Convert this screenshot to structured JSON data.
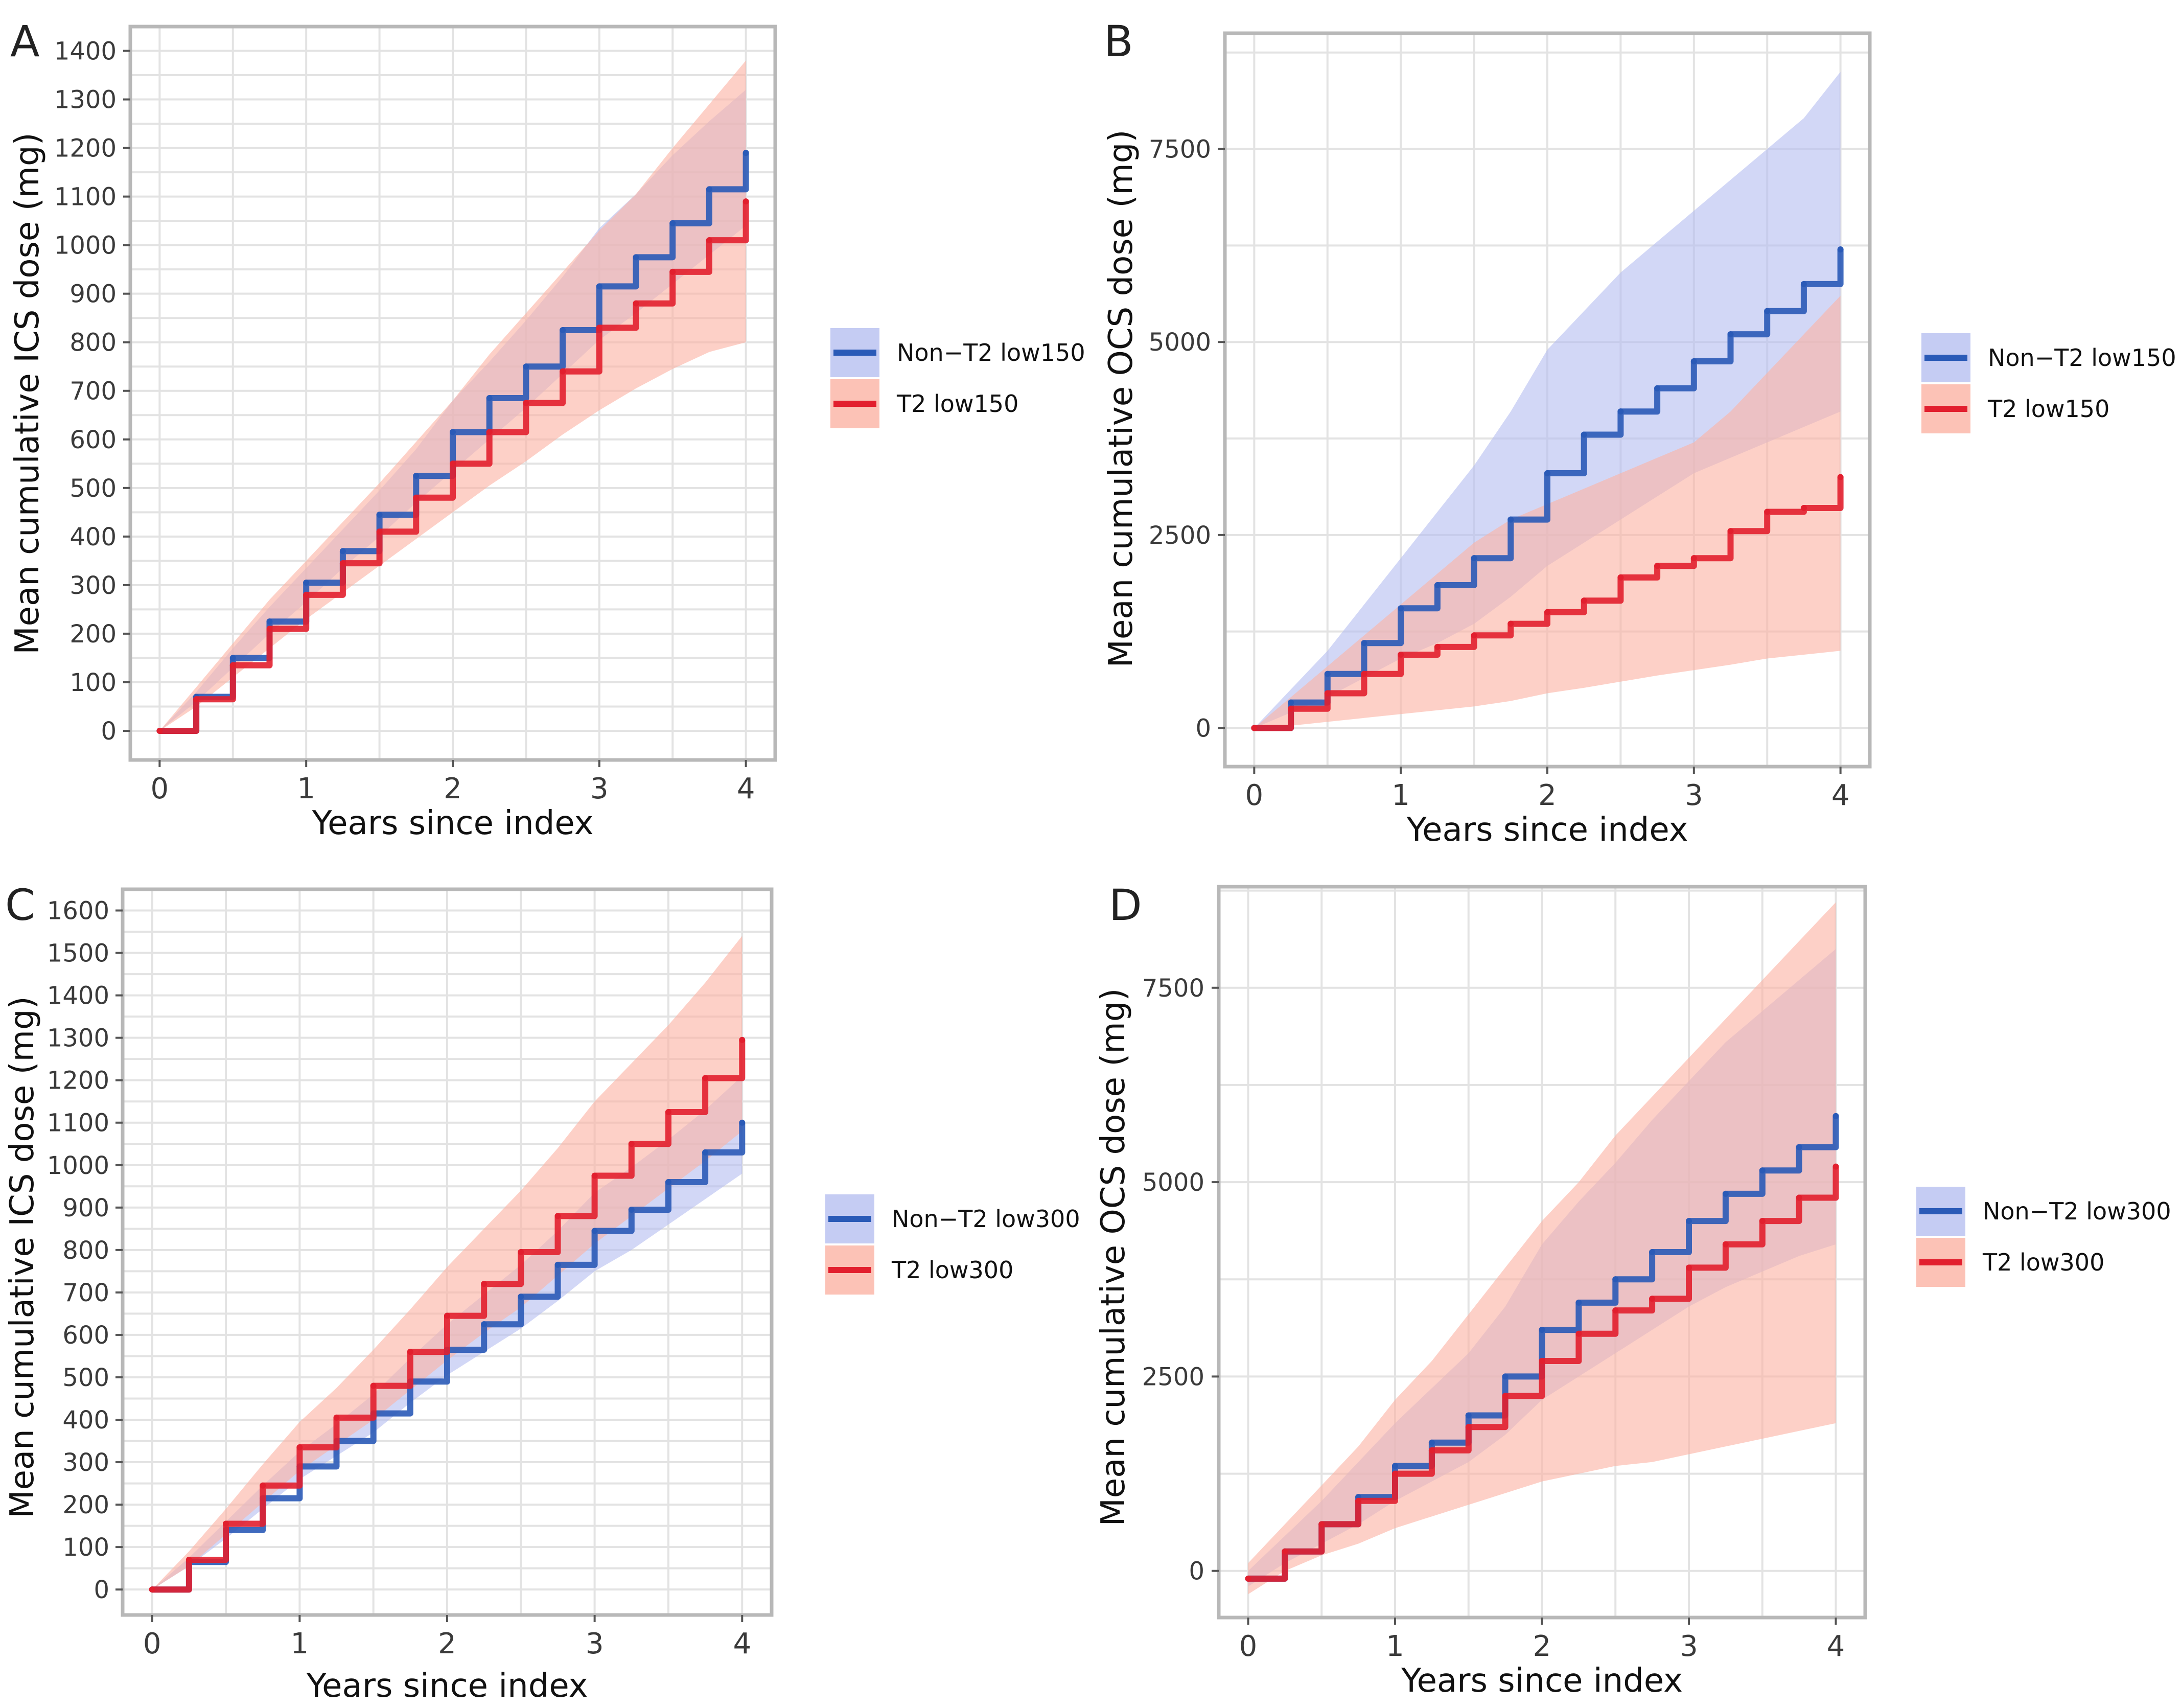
{
  "figure": {
    "colors": {
      "nonT2_line": "#2a5ab7",
      "nonT2_band": "#b7bff0",
      "t2_line": "#e21f2e",
      "t2_band": "#fbb3a4",
      "overlap_line": "#5b4a9a",
      "grid": "#e3e3e3",
      "frame": "#b8b8b8"
    }
  },
  "chart_data": [
    {
      "panel": "A",
      "type": "line",
      "title": "",
      "xlabel": "Years since index",
      "ylabel": "Mean cumulative ICS dose (mg)",
      "xlim": [
        -0.2,
        4.2
      ],
      "ylim": [
        -60,
        1450
      ],
      "x_ticks": [
        0,
        1,
        2,
        3,
        4
      ],
      "y_ticks": [
        0,
        100,
        200,
        300,
        400,
        500,
        600,
        700,
        800,
        900,
        1000,
        1100,
        1200,
        1300,
        1400
      ],
      "grid": true,
      "legend_position": "right",
      "series": [
        {
          "name": "Non−T2 low150",
          "color_key": "nonT2",
          "x": [
            0,
            0.25,
            0.5,
            0.75,
            1,
            1.25,
            1.5,
            1.75,
            2,
            2.25,
            2.5,
            2.75,
            3,
            3.25,
            3.5,
            3.75,
            4
          ],
          "values": [
            0,
            70,
            150,
            225,
            305,
            370,
            445,
            525,
            615,
            685,
            750,
            825,
            915,
            975,
            1045,
            1115,
            1190
          ],
          "lower": [
            0,
            60,
            130,
            200,
            265,
            335,
            400,
            470,
            535,
            600,
            665,
            735,
            805,
            860,
            920,
            980,
            1040
          ],
          "upper": [
            0,
            80,
            170,
            255,
            335,
            415,
            495,
            580,
            680,
            760,
            845,
            935,
            1035,
            1105,
            1185,
            1255,
            1320
          ]
        },
        {
          "name": "T2 low150",
          "color_key": "t2",
          "x": [
            0,
            0.25,
            0.5,
            0.75,
            1,
            1.25,
            1.5,
            1.75,
            2,
            2.25,
            2.5,
            2.75,
            3,
            3.25,
            3.5,
            3.75,
            4
          ],
          "values": [
            0,
            65,
            135,
            210,
            280,
            345,
            410,
            480,
            550,
            615,
            675,
            740,
            830,
            880,
            945,
            1010,
            1090
          ],
          "lower": [
            0,
            50,
            110,
            170,
            230,
            285,
            340,
            395,
            450,
            505,
            555,
            610,
            660,
            705,
            745,
            780,
            800
          ],
          "upper": [
            0,
            90,
            180,
            270,
            350,
            430,
            510,
            595,
            680,
            775,
            860,
            945,
            1030,
            1105,
            1200,
            1290,
            1380
          ]
        }
      ]
    },
    {
      "panel": "B",
      "type": "line",
      "title": "",
      "xlabel": "Years since index",
      "ylabel": "Mean cumulative OCS dose (mg)",
      "xlim": [
        -0.2,
        4.2
      ],
      "ylim": [
        -500,
        9000
      ],
      "x_ticks": [
        0,
        1,
        2,
        3,
        4
      ],
      "y_ticks": [
        0,
        2500,
        5000,
        7500
      ],
      "grid": true,
      "legend_position": "right",
      "series": [
        {
          "name": "Non−T2 low150",
          "color_key": "nonT2",
          "x": [
            0,
            0.25,
            0.5,
            0.75,
            1,
            1.25,
            1.5,
            1.75,
            2,
            2.25,
            2.5,
            2.75,
            3,
            3.25,
            3.5,
            3.75,
            4
          ],
          "values": [
            0,
            330,
            700,
            1100,
            1550,
            1850,
            2200,
            2700,
            3300,
            3800,
            4100,
            4400,
            4750,
            5100,
            5400,
            5750,
            6200
          ],
          "lower": [
            0,
            200,
            400,
            650,
            900,
            1100,
            1350,
            1700,
            2100,
            2400,
            2700,
            3000,
            3300,
            3500,
            3700,
            3900,
            4100
          ],
          "upper": [
            0,
            500,
            1000,
            1600,
            2200,
            2800,
            3400,
            4100,
            4900,
            5400,
            5900,
            6300,
            6700,
            7100,
            7500,
            7900,
            8500
          ]
        },
        {
          "name": "T2 low150",
          "color_key": "t2",
          "x": [
            0,
            0.25,
            0.5,
            0.75,
            1,
            1.25,
            1.5,
            1.75,
            2,
            2.25,
            2.5,
            2.75,
            3,
            3.25,
            3.5,
            3.75,
            4
          ],
          "values": [
            0,
            250,
            450,
            700,
            950,
            1050,
            1200,
            1350,
            1500,
            1650,
            1950,
            2100,
            2200,
            2550,
            2800,
            2850,
            3250
          ],
          "lower": [
            0,
            30,
            80,
            130,
            180,
            230,
            280,
            350,
            450,
            520,
            600,
            680,
            750,
            820,
            900,
            950,
            1000
          ],
          "upper": [
            0,
            400,
            800,
            1200,
            1600,
            2000,
            2400,
            2700,
            2900,
            3100,
            3300,
            3500,
            3700,
            4100,
            4600,
            5100,
            5600
          ]
        }
      ]
    },
    {
      "panel": "C",
      "type": "line",
      "title": "",
      "xlabel": "Years since index",
      "ylabel": "Mean cumulative ICS dose (mg)",
      "xlim": [
        -0.2,
        4.2
      ],
      "ylim": [
        -60,
        1650
      ],
      "x_ticks": [
        0,
        1,
        2,
        3,
        4
      ],
      "y_ticks": [
        0,
        100,
        200,
        300,
        400,
        500,
        600,
        700,
        800,
        900,
        1000,
        1100,
        1200,
        1300,
        1400,
        1500,
        1600
      ],
      "grid": true,
      "legend_position": "right",
      "series": [
        {
          "name": "Non−T2 low300",
          "color_key": "nonT2",
          "x": [
            0,
            0.25,
            0.5,
            0.75,
            1,
            1.25,
            1.5,
            1.75,
            2,
            2.25,
            2.5,
            2.75,
            3,
            3.25,
            3.5,
            3.75,
            4
          ],
          "values": [
            0,
            65,
            140,
            215,
            290,
            350,
            415,
            490,
            565,
            625,
            690,
            765,
            845,
            895,
            960,
            1030,
            1100
          ],
          "lower": [
            0,
            55,
            120,
            190,
            260,
            315,
            370,
            440,
            505,
            560,
            615,
            680,
            750,
            800,
            860,
            920,
            980
          ],
          "upper": [
            0,
            75,
            160,
            245,
            325,
            390,
            460,
            545,
            625,
            695,
            765,
            845,
            935,
            995,
            1060,
            1130,
            1210
          ]
        },
        {
          "name": "T2 low300",
          "color_key": "t2",
          "x": [
            0,
            0.25,
            0.5,
            0.75,
            1,
            1.25,
            1.5,
            1.75,
            2,
            2.25,
            2.5,
            2.75,
            3,
            3.25,
            3.5,
            3.75,
            4
          ],
          "values": [
            0,
            70,
            155,
            245,
            335,
            405,
            480,
            560,
            645,
            720,
            795,
            880,
            975,
            1050,
            1125,
            1205,
            1295
          ],
          "lower": [
            0,
            55,
            130,
            205,
            280,
            340,
            400,
            470,
            540,
            605,
            665,
            740,
            815,
            880,
            945,
            1010,
            1080
          ],
          "upper": [
            0,
            90,
            190,
            295,
            395,
            475,
            565,
            660,
            760,
            850,
            940,
            1040,
            1150,
            1240,
            1330,
            1430,
            1540
          ]
        }
      ]
    },
    {
      "panel": "D",
      "type": "line",
      "title": "",
      "xlabel": "Years since index",
      "ylabel": "Mean cumulative OCS dose (mg)",
      "xlim": [
        -0.2,
        4.2
      ],
      "ylim": [
        -600,
        8800
      ],
      "x_ticks": [
        0,
        1,
        2,
        3,
        4
      ],
      "y_ticks": [
        0,
        2500,
        5000,
        7500
      ],
      "grid": true,
      "legend_position": "right",
      "series": [
        {
          "name": "Non−T2 low300",
          "color_key": "nonT2",
          "x": [
            0,
            0.25,
            0.5,
            0.75,
            1,
            1.25,
            1.5,
            1.75,
            2,
            2.25,
            2.5,
            2.75,
            3,
            3.25,
            3.5,
            3.75,
            4
          ],
          "values": [
            -100,
            250,
            600,
            950,
            1350,
            1650,
            2000,
            2500,
            3100,
            3450,
            3750,
            4100,
            4500,
            4850,
            5150,
            5450,
            5850
          ],
          "lower": [
            -200,
            100,
            350,
            600,
            900,
            1150,
            1400,
            1750,
            2200,
            2500,
            2800,
            3100,
            3400,
            3650,
            3850,
            4050,
            4200
          ],
          "upper": [
            0,
            450,
            900,
            1400,
            1900,
            2350,
            2800,
            3400,
            4200,
            4750,
            5250,
            5800,
            6300,
            6800,
            7200,
            7600,
            8000
          ]
        },
        {
          "name": "T2 low300",
          "color_key": "t2",
          "x": [
            0,
            0.25,
            0.5,
            0.75,
            1,
            1.25,
            1.5,
            1.75,
            2,
            2.25,
            2.5,
            2.75,
            3,
            3.25,
            3.5,
            3.75,
            4
          ],
          "values": [
            -100,
            250,
            600,
            900,
            1250,
            1550,
            1850,
            2250,
            2700,
            3050,
            3350,
            3500,
            3900,
            4200,
            4500,
            4800,
            5200
          ],
          "lower": [
            -300,
            0,
            200,
            350,
            550,
            700,
            850,
            1000,
            1150,
            1250,
            1350,
            1400,
            1500,
            1600,
            1700,
            1800,
            1900
          ],
          "upper": [
            100,
            600,
            1100,
            1600,
            2200,
            2700,
            3300,
            3900,
            4500,
            5000,
            5600,
            6100,
            6600,
            7100,
            7600,
            8100,
            8600
          ]
        }
      ]
    }
  ]
}
